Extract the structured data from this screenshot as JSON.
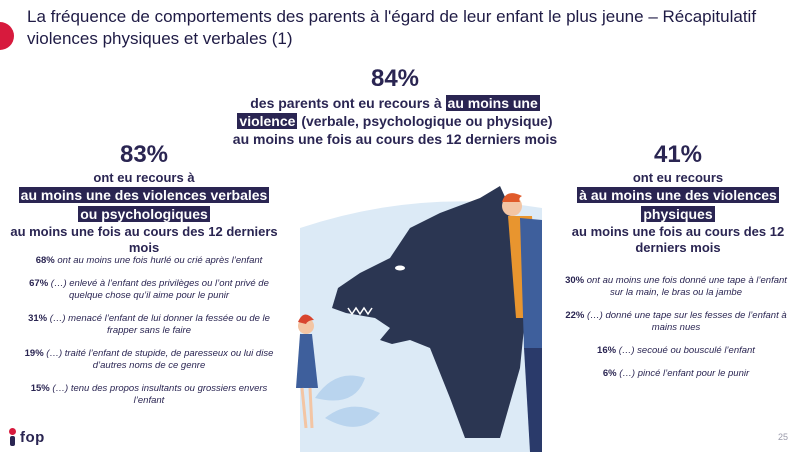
{
  "title": "La fréquence de comportements des parents à l'égard de leur enfant le plus jeune – Récapitulatif violences physiques et verbales (1)",
  "center": {
    "pct": "84%",
    "line1": "des parents ont eu recours à ",
    "highlight1": "au moins une",
    "highlight2": "violence",
    "line2": " (verbale, psychologique ou physique)",
    "line3": "au moins une fois au cours des 12 derniers mois"
  },
  "left": {
    "pct": "83%",
    "line1": "ont eu recours à",
    "highlight1": "au moins une des violences verbales",
    "highlight2": "ou psychologiques",
    "line2": "au moins une fois au cours des 12 derniers mois",
    "stats": [
      {
        "pct": "68%",
        "desc": "ont au moins une fois hurlé ou crié après l’enfant"
      },
      {
        "pct": "67%",
        "desc": "(…) enlevé à l’enfant des privilèges ou l’ont privé de quelque chose qu’il aime pour le punir"
      },
      {
        "pct": "31%",
        "desc": "(…) menacé l’enfant de lui donner la fessée ou de le frapper sans le faire"
      },
      {
        "pct": "19%",
        "desc": "(…) traité l’enfant de stupide, de paresseux ou lui dise d’autres noms de ce genre"
      },
      {
        "pct": "15%",
        "desc": "(…) tenu des propos insultants ou grossiers envers l’enfant"
      }
    ]
  },
  "right": {
    "pct": "41%",
    "line1": "ont eu recours",
    "highlight1": "à au moins une des violences",
    "highlight2": "physiques",
    "line2": "au moins une fois au cours des 12 derniers mois",
    "stats": [
      {
        "pct": "30%",
        "desc": "ont au moins une fois donné une tape à l’enfant sur la main, le bras ou la jambe"
      },
      {
        "pct": "22%",
        "desc": "(…) donné une tape sur les fesses de l’enfant à mains nues"
      },
      {
        "pct": "16%",
        "desc": "(…) secoué ou bousculé l’enfant"
      },
      {
        "pct": "6%",
        "desc": "(…) pincé l’enfant pour le punir"
      }
    ]
  },
  "logo": {
    "text": "fop"
  },
  "page_number": "25",
  "colors": {
    "navy": "#2a2552",
    "accent_red": "#d71a3d",
    "sky": "#dceaf6"
  }
}
